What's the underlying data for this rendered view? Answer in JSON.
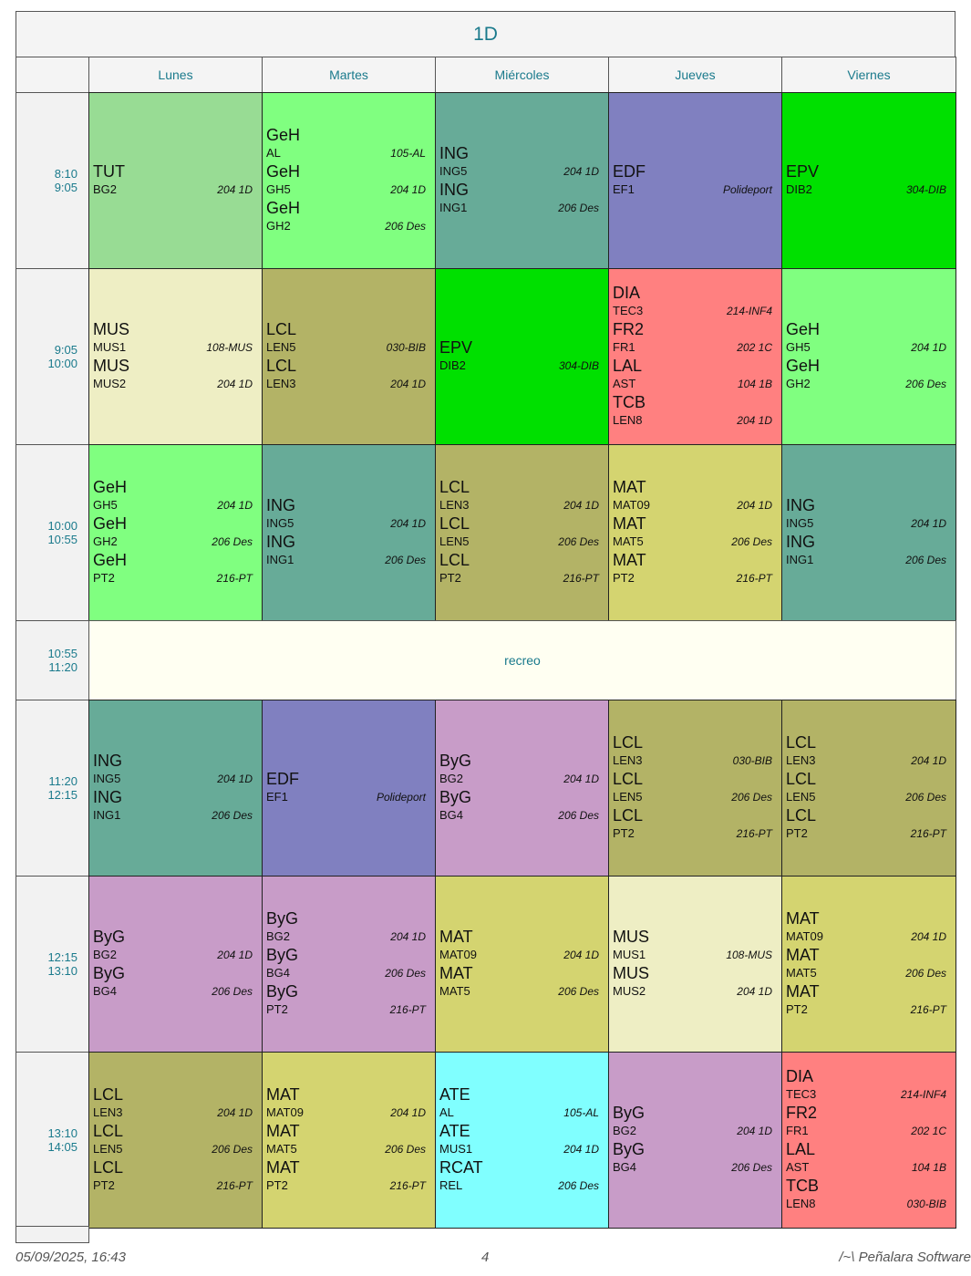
{
  "title": "1D",
  "days": [
    "Lunes",
    "Martes",
    "Miércoles",
    "Jueves",
    "Viernes"
  ],
  "rows": [
    {
      "start": "8:10",
      "end": "9:05",
      "cells": [
        {
          "color": "#98dc94",
          "entries": [
            [
              "TUT",
              "BG2",
              "204 1D"
            ]
          ]
        },
        {
          "color": "#80ff80",
          "entries": [
            [
              "GeH",
              "AL",
              "105-AL"
            ],
            [
              "GeH",
              "GH5",
              "204 1D"
            ],
            [
              "GeH",
              "GH2",
              "206 Des"
            ]
          ]
        },
        {
          "color": "#67ab98",
          "entries": [
            [
              "ING",
              "ING5",
              "204 1D"
            ],
            [
              "ING",
              "ING1",
              "206 Des"
            ]
          ]
        },
        {
          "color": "#8080c0",
          "entries": [
            [
              "EDF",
              "EF1",
              "Polideport"
            ]
          ]
        },
        {
          "color": "#00e000",
          "entries": [
            [
              "EPV",
              "DIB2",
              "304-DIB"
            ]
          ]
        }
      ]
    },
    {
      "start": "9:05",
      "end": "10:00",
      "cells": [
        {
          "color": "#eeeec4",
          "entries": [
            [
              "MUS",
              "MUS1",
              "108-MUS"
            ],
            [
              "MUS",
              "MUS2",
              "204 1D"
            ]
          ]
        },
        {
          "color": "#b3b366",
          "entries": [
            [
              "LCL",
              "LEN5",
              "030-BIB"
            ],
            [
              "LCL",
              "LEN3",
              "204 1D"
            ]
          ]
        },
        {
          "color": "#00e000",
          "entries": [
            [
              "EPV",
              "DIB2",
              "304-DIB"
            ]
          ]
        },
        {
          "color": "#ff8080",
          "entries": [
            [
              "DIA",
              "TEC3",
              "214-INF4"
            ],
            [
              "FR2",
              "FR1",
              "202 1C"
            ],
            [
              "LAL",
              "AST",
              "104 1B"
            ],
            [
              "TCB",
              "LEN8",
              "204 1D"
            ]
          ]
        },
        {
          "color": "#80ff80",
          "entries": [
            [
              "GeH",
              "GH5",
              "204 1D"
            ],
            [
              "GeH",
              "GH2",
              "206 Des"
            ]
          ]
        }
      ]
    },
    {
      "start": "10:00",
      "end": "10:55",
      "cells": [
        {
          "color": "#80ff80",
          "entries": [
            [
              "GeH",
              "GH5",
              "204 1D"
            ],
            [
              "GeH",
              "GH2",
              "206 Des"
            ],
            [
              "GeH",
              "PT2",
              "216-PT"
            ]
          ]
        },
        {
          "color": "#67ab98",
          "entries": [
            [
              "ING",
              "ING5",
              "204 1D"
            ],
            [
              "ING",
              "ING1",
              "206 Des"
            ]
          ]
        },
        {
          "color": "#b3b366",
          "entries": [
            [
              "LCL",
              "LEN3",
              "204 1D"
            ],
            [
              "LCL",
              "LEN5",
              "206 Des"
            ],
            [
              "LCL",
              "PT2",
              "216-PT"
            ]
          ]
        },
        {
          "color": "#d4d470",
          "entries": [
            [
              "MAT",
              "MAT09",
              "204 1D"
            ],
            [
              "MAT",
              "MAT5",
              "206 Des"
            ],
            [
              "MAT",
              "PT2",
              "216-PT"
            ]
          ]
        },
        {
          "color": "#67ab98",
          "entries": [
            [
              "ING",
              "ING5",
              "204 1D"
            ],
            [
              "ING",
              "ING1",
              "206 Des"
            ]
          ]
        }
      ]
    },
    {
      "start": "10:55",
      "end": "11:20",
      "label": "recreo",
      "color": "#fffff2"
    },
    {
      "start": "11:20",
      "end": "12:15",
      "cells": [
        {
          "color": "#67ab98",
          "entries": [
            [
              "ING",
              "ING5",
              "204 1D"
            ],
            [
              "ING",
              "ING1",
              "206 Des"
            ]
          ]
        },
        {
          "color": "#8080c0",
          "entries": [
            [
              "EDF",
              "EF1",
              "Polideport"
            ]
          ]
        },
        {
          "color": "#c89cc8",
          "entries": [
            [
              "ByG",
              "BG2",
              "204 1D"
            ],
            [
              "ByG",
              "BG4",
              "206 Des"
            ]
          ]
        },
        {
          "color": "#b3b366",
          "entries": [
            [
              "LCL",
              "LEN3",
              "030-BIB"
            ],
            [
              "LCL",
              "LEN5",
              "206 Des"
            ],
            [
              "LCL",
              "PT2",
              "216-PT"
            ]
          ]
        },
        {
          "color": "#b3b366",
          "entries": [
            [
              "LCL",
              "LEN3",
              "204 1D"
            ],
            [
              "LCL",
              "LEN5",
              "206 Des"
            ],
            [
              "LCL",
              "PT2",
              "216-PT"
            ]
          ]
        }
      ]
    },
    {
      "start": "12:15",
      "end": "13:10",
      "cells": [
        {
          "color": "#c89cc8",
          "entries": [
            [
              "ByG",
              "BG2",
              "204 1D"
            ],
            [
              "ByG",
              "BG4",
              "206 Des"
            ]
          ]
        },
        {
          "color": "#c89cc8",
          "entries": [
            [
              "ByG",
              "BG2",
              "204 1D"
            ],
            [
              "ByG",
              "BG4",
              "206 Des"
            ],
            [
              "ByG",
              "PT2",
              "216-PT"
            ]
          ]
        },
        {
          "color": "#d4d470",
          "entries": [
            [
              "MAT",
              "MAT09",
              "204 1D"
            ],
            [
              "MAT",
              "MAT5",
              "206 Des"
            ]
          ]
        },
        {
          "color": "#eeeec4",
          "entries": [
            [
              "MUS",
              "MUS1",
              "108-MUS"
            ],
            [
              "MUS",
              "MUS2",
              "204 1D"
            ]
          ]
        },
        {
          "color": "#d4d470",
          "entries": [
            [
              "MAT",
              "MAT09",
              "204 1D"
            ],
            [
              "MAT",
              "MAT5",
              "206 Des"
            ],
            [
              "MAT",
              "PT2",
              "216-PT"
            ]
          ]
        }
      ]
    },
    {
      "start": "13:10",
      "end": "14:05",
      "cells": [
        {
          "color": "#b3b366",
          "entries": [
            [
              "LCL",
              "LEN3",
              "204 1D"
            ],
            [
              "LCL",
              "LEN5",
              "206 Des"
            ],
            [
              "LCL",
              "PT2",
              "216-PT"
            ]
          ]
        },
        {
          "color": "#d4d470",
          "entries": [
            [
              "MAT",
              "MAT09",
              "204 1D"
            ],
            [
              "MAT",
              "MAT5",
              "206 Des"
            ],
            [
              "MAT",
              "PT2",
              "216-PT"
            ]
          ]
        },
        {
          "color": "#80ffff",
          "entries": [
            [
              "ATE",
              "AL",
              "105-AL"
            ],
            [
              "ATE",
              "MUS1",
              "204 1D"
            ],
            [
              "RCAT",
              "REL",
              "206 Des"
            ]
          ]
        },
        {
          "color": "#c89cc8",
          "entries": [
            [
              "ByG",
              "BG2",
              "204 1D"
            ],
            [
              "ByG",
              "BG4",
              "206 Des"
            ]
          ]
        },
        {
          "color": "#ff8080",
          "entries": [
            [
              "DIA",
              "TEC3",
              "214-INF4"
            ],
            [
              "FR2",
              "FR1",
              "202 1C"
            ],
            [
              "LAL",
              "AST",
              "104 1B"
            ],
            [
              "TCB",
              "LEN8",
              "030-BIB"
            ]
          ]
        }
      ]
    }
  ],
  "footer": {
    "date": "05/09/2025, 16:43",
    "page": "4",
    "brand": "/~\\ Peñalara Software"
  }
}
